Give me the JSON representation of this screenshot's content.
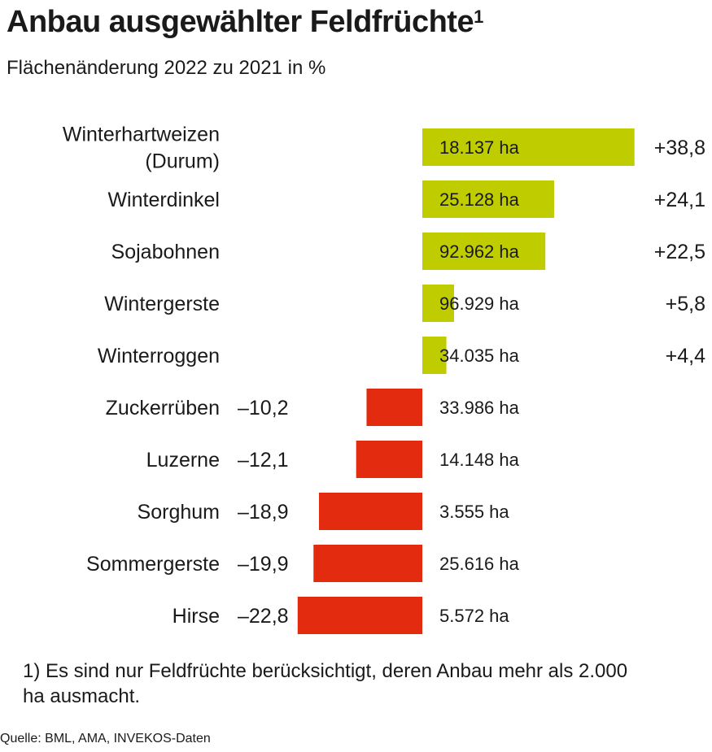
{
  "header": {
    "title": "Anbau ausgewählter Feldfrüchte",
    "title_footnote_mark": "1",
    "subtitle": "Flächenänderung 2022 zu 2021 in %"
  },
  "footnote": "1) Es sind nur Feldfrüchte berücksichtigt, deren Anbau mehr als 2.000 ha ausmacht.",
  "source": "Quelle: BML, AMA, INVEKOS-Daten",
  "colors": {
    "positive": "#bfcc00",
    "negative": "#e32b10",
    "text": "#1a1a1a"
  },
  "chart_data": {
    "type": "bar",
    "orientation": "horizontal",
    "categories": [
      [
        "Winterhartweizen",
        "(Durum)"
      ],
      [
        "Winterdinkel"
      ],
      [
        "Sojabohnen"
      ],
      [
        "Wintergerste"
      ],
      [
        "Winterroggen"
      ],
      [
        "Zuckerrüben"
      ],
      [
        "Luzerne"
      ],
      [
        "Sorghum"
      ],
      [
        "Sommergerste"
      ],
      [
        "Hirse"
      ]
    ],
    "values": [
      38.8,
      24.1,
      22.5,
      5.8,
      4.4,
      -10.2,
      -12.1,
      -18.9,
      -19.9,
      -22.8
    ],
    "value_labels": [
      "+38,8",
      "+24,1",
      "+22,5",
      "+5,8",
      "+4,4",
      "–10,2",
      "–12,1",
      "–18,9",
      "–19,9",
      "–22,8"
    ],
    "area_labels": [
      "18.137 ha",
      "25.128 ha",
      "92.962 ha",
      "96.929 ha",
      "34.035 ha",
      "33.986 ha",
      "14.148 ha",
      "3.555 ha",
      "25.616 ha",
      "5.572 ha"
    ],
    "xlim": [
      -22.8,
      38.8
    ]
  }
}
